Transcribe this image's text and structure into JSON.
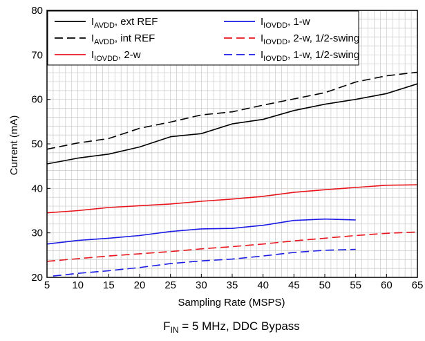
{
  "chart_data": {
    "type": "line",
    "xlabel": "Sampling Rate (MSPS)",
    "ylabel": "Current (mA)",
    "xlim": [
      5,
      65
    ],
    "ylim": [
      20,
      80
    ],
    "xticks": [
      5,
      10,
      15,
      20,
      25,
      30,
      35,
      40,
      45,
      50,
      55,
      60,
      65
    ],
    "yticks": [
      20,
      30,
      40,
      50,
      60,
      70,
      80
    ],
    "grid": true,
    "legend_position": "top-left",
    "caption": {
      "prefix": "F",
      "sub": "IN",
      "suffix": " = 5 MHz, DDC Bypass"
    },
    "series": [
      {
        "name": "I_AVDD, ext REF",
        "label_main": "I",
        "label_sub": "AVDD",
        "label_rest": ", ext REF",
        "color": "#000000",
        "dash": "solid",
        "x": [
          5,
          10,
          15,
          20,
          25,
          30,
          35,
          40,
          45,
          50,
          55,
          60,
          65
        ],
        "y": [
          45.5,
          46.8,
          47.7,
          49.3,
          51.6,
          52.3,
          54.5,
          55.5,
          57.5,
          58.9,
          60.0,
          61.3,
          63.5
        ]
      },
      {
        "name": "I_AVDD, int REF",
        "label_main": "I",
        "label_sub": "AVDD",
        "label_rest": ", int REF",
        "color": "#000000",
        "dash": "dashed",
        "x": [
          5,
          10,
          15,
          20,
          25,
          30,
          35,
          40,
          45,
          50,
          55,
          60,
          65
        ],
        "y": [
          48.8,
          50.2,
          51.2,
          53.5,
          54.9,
          56.5,
          57.2,
          58.7,
          60.1,
          61.5,
          63.9,
          65.3,
          66.1
        ]
      },
      {
        "name": "I_IOVDD, 2-w",
        "label_main": "I",
        "label_sub": "IOVDD",
        "label_rest": ", 2-w",
        "color": "#e8141b",
        "dash": "solid",
        "x": [
          5,
          10,
          15,
          20,
          25,
          30,
          35,
          40,
          45,
          50,
          55,
          60,
          65
        ],
        "y": [
          34.5,
          35.0,
          35.7,
          36.1,
          36.5,
          37.1,
          37.6,
          38.2,
          39.1,
          39.7,
          40.2,
          40.7,
          40.8
        ]
      },
      {
        "name": "I_IOVDD, 1-w",
        "label_main": "I",
        "label_sub": "IOVDD",
        "label_rest": ", 1-w",
        "color": "#1a1ae6",
        "dash": "solid",
        "x": [
          5,
          10,
          15,
          20,
          25,
          30,
          35,
          40,
          45,
          50,
          55
        ],
        "y": [
          27.5,
          28.3,
          28.8,
          29.4,
          30.3,
          30.9,
          31.0,
          31.7,
          32.8,
          33.1,
          32.9
        ]
      },
      {
        "name": "I_IOVDD, 2-w, 1/2-swing",
        "label_main": "I",
        "label_sub": "IOVDD",
        "label_rest": ", 2-w, 1/2-swing",
        "color": "#e8141b",
        "dash": "dashed",
        "x": [
          5,
          10,
          15,
          20,
          25,
          30,
          35,
          40,
          45,
          50,
          55,
          60,
          65
        ],
        "y": [
          23.6,
          24.2,
          24.8,
          25.3,
          25.8,
          26.4,
          26.9,
          27.5,
          28.2,
          28.8,
          29.4,
          29.9,
          30.2
        ]
      },
      {
        "name": "I_IOVDD, 1-w, 1/2-swing",
        "label_main": "I",
        "label_sub": "IOVDD",
        "label_rest": ", 1-w, 1/2-swing",
        "color": "#1a1ae6",
        "dash": "dashed",
        "x": [
          6,
          10,
          15,
          20,
          25,
          30,
          35,
          40,
          45,
          50,
          55
        ],
        "y": [
          20.3,
          20.9,
          21.5,
          22.2,
          23.1,
          23.7,
          24.1,
          24.8,
          25.6,
          26.1,
          26.3
        ]
      }
    ]
  }
}
